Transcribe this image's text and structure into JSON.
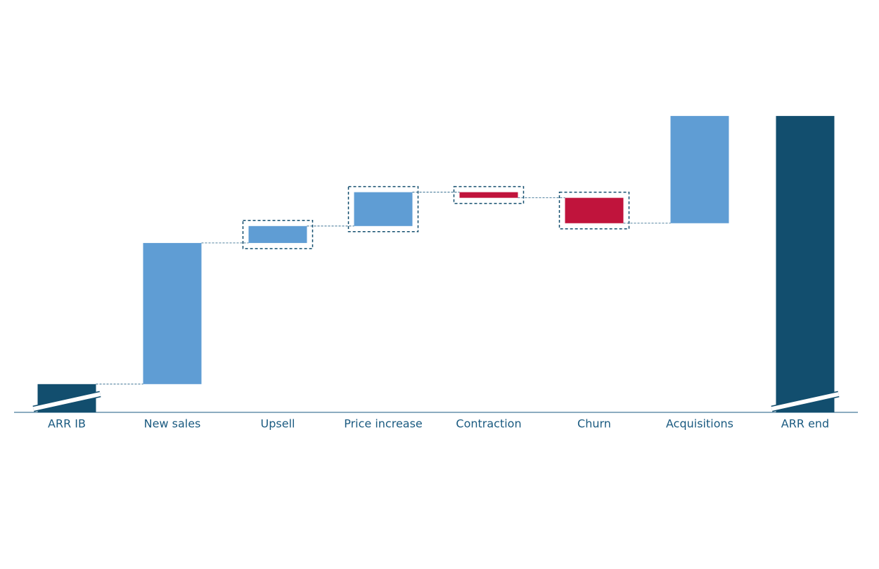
{
  "chart_data": {
    "type": "waterfall",
    "categories": [
      "ARR IB",
      "New sales",
      "Upsell",
      "Price increase",
      "Contraction",
      "Churn",
      "Acquisitions",
      "ARR end"
    ],
    "values": [
      10,
      50,
      6,
      12,
      -2,
      -9,
      38,
      105
    ],
    "measures": [
      "total",
      "relative",
      "relative",
      "relative",
      "relative",
      "relative",
      "relative",
      "total"
    ],
    "highlight": [
      false,
      false,
      true,
      true,
      true,
      true,
      false,
      false
    ],
    "axis_break": true,
    "colors": {
      "total": "#124e6e",
      "increase": "#5f9dd4",
      "decrease": "#c0143c"
    },
    "ylim": [
      0,
      110
    ]
  }
}
